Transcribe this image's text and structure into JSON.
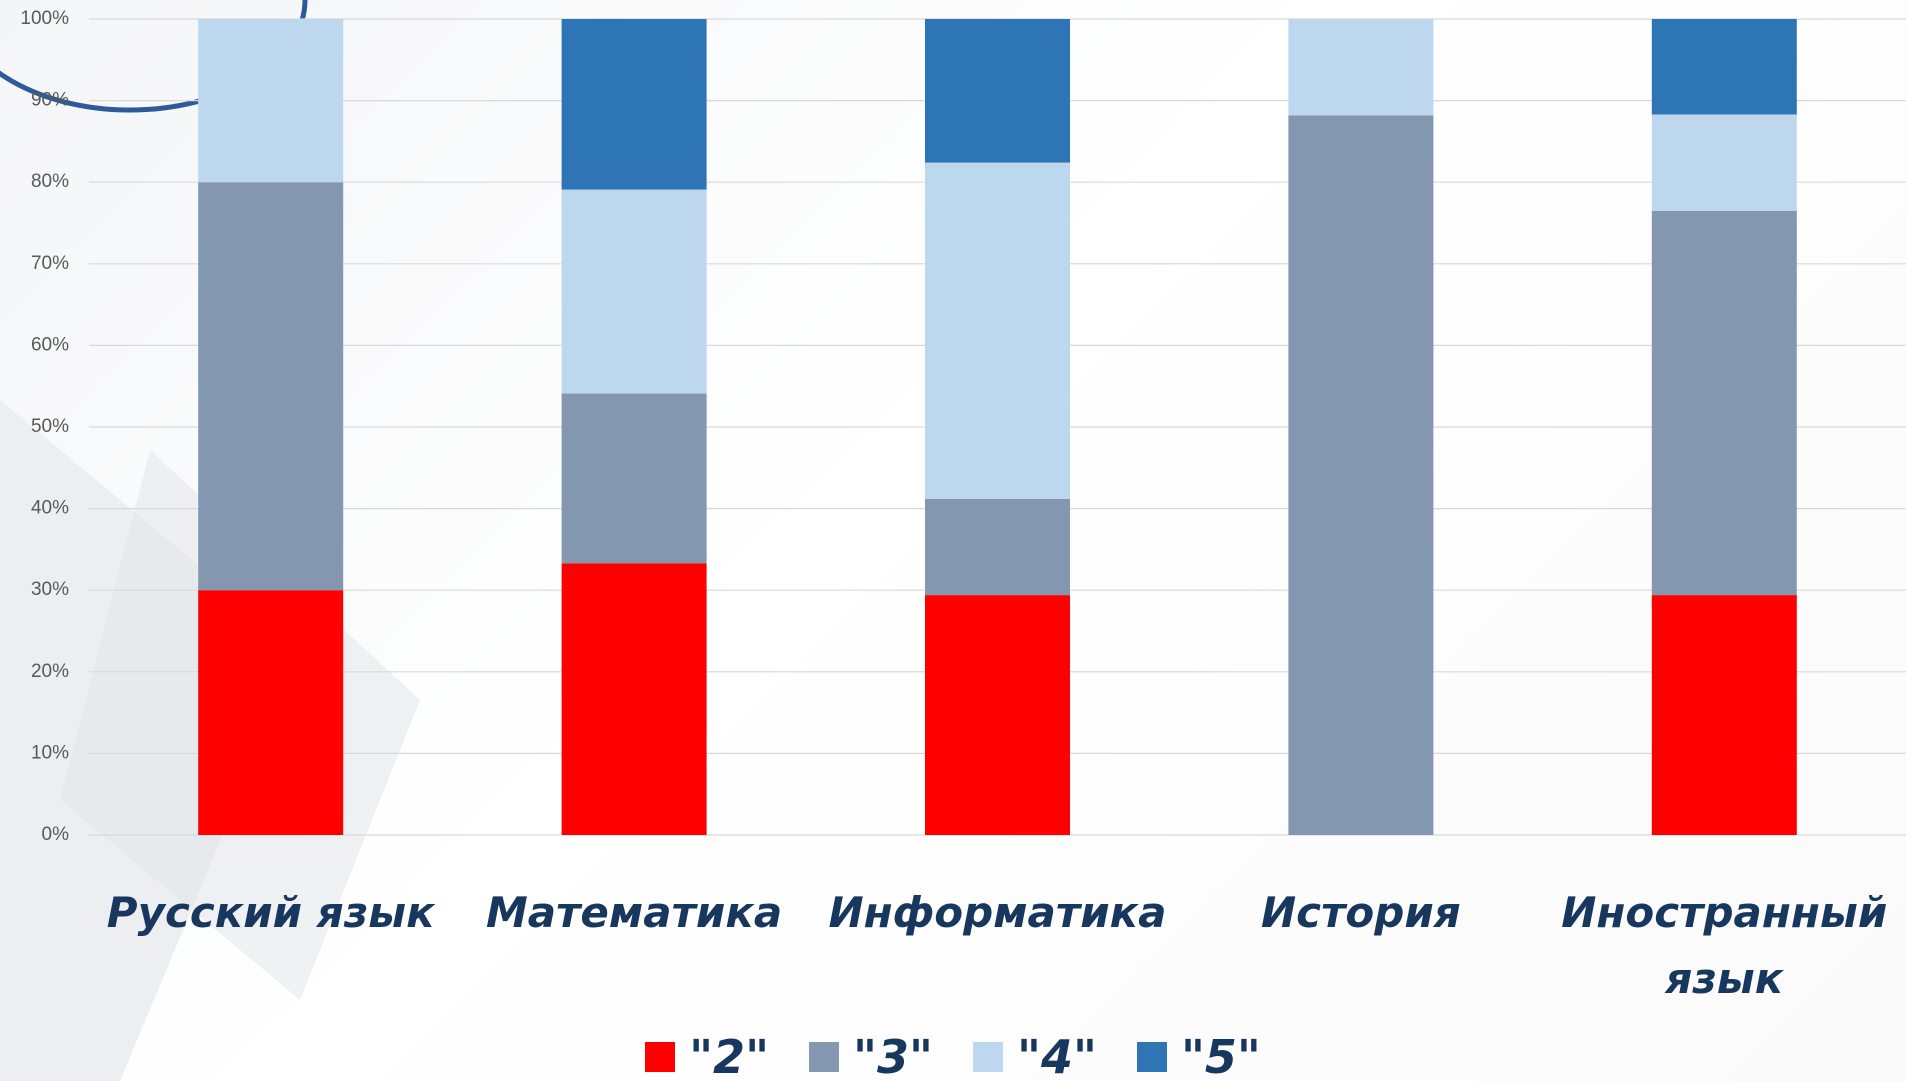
{
  "chart_data": {
    "type": "stacked_bar",
    "categories": [
      "Русский язык",
      "Математика",
      "Информатика",
      "История",
      "Иностранный язык"
    ],
    "series": [
      {
        "name": "\"2\"",
        "color": "#ff0000",
        "values": [
          30,
          33.3,
          29.4,
          0,
          29.4
        ]
      },
      {
        "name": "\"3\"",
        "color": "#8497b0",
        "values": [
          50,
          20.8,
          11.8,
          88.2,
          47.1
        ]
      },
      {
        "name": "\"4\"",
        "color": "#bdd7ee",
        "values": [
          20,
          25,
          41.2,
          11.8,
          11.8
        ]
      },
      {
        "name": "\"5\"",
        "color": "#2e75b6",
        "values": [
          0,
          20.9,
          17.6,
          0,
          11.7
        ]
      }
    ],
    "ylim": [
      0,
      100
    ],
    "yticks": [
      {
        "value": 0,
        "label": "0%"
      },
      {
        "value": 10,
        "label": "10%"
      },
      {
        "value": 20,
        "label": "20%"
      },
      {
        "value": 30,
        "label": "30%"
      },
      {
        "value": 40,
        "label": "40%"
      },
      {
        "value": 50,
        "label": "50%"
      },
      {
        "value": 60,
        "label": "60%"
      },
      {
        "value": 70,
        "label": "70%"
      },
      {
        "value": 80,
        "label": "80%"
      },
      {
        "value": 90,
        "label": "90%"
      },
      {
        "value": 100,
        "label": "100%"
      }
    ],
    "grid": true,
    "legend": "bottom"
  }
}
